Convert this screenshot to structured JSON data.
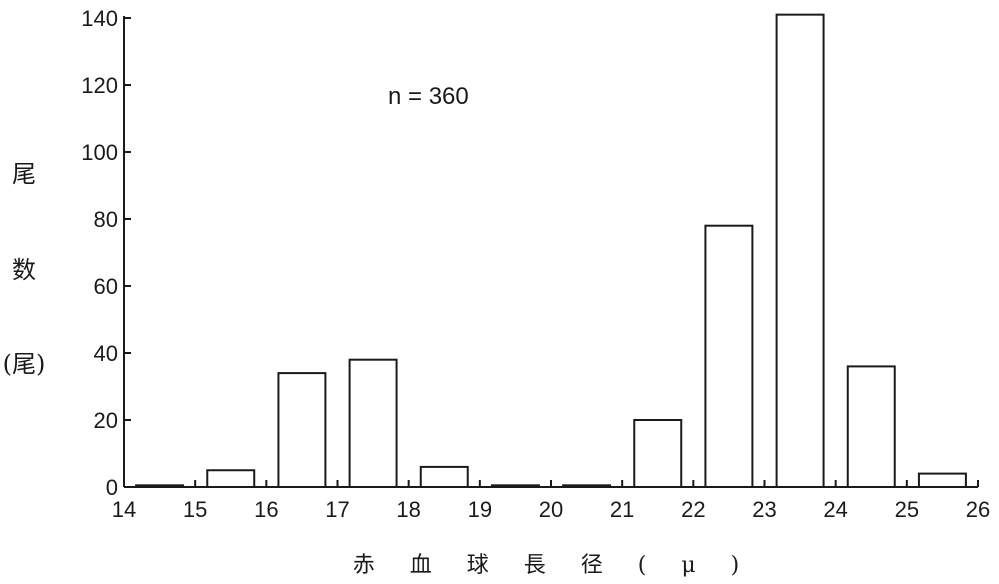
{
  "chart_data": {
    "type": "bar",
    "annotation": "n = 360",
    "ylabel_lines": [
      "尾",
      "数",
      "(尾)"
    ],
    "xlabel": "赤 血 球 長 径 ( μ )",
    "x_ticks": [
      "14",
      "15",
      "16",
      "17",
      "18",
      "19",
      "20",
      "21",
      "22",
      "23",
      "24",
      "25",
      "26"
    ],
    "y_ticks": [
      "0",
      "20",
      "40",
      "60",
      "80",
      "100",
      "120",
      "140"
    ],
    "ylim": [
      0,
      140
    ],
    "xlim": [
      14,
      26
    ],
    "grid": false,
    "bins": [
      {
        "from": 14,
        "to": 15,
        "value": 0.5
      },
      {
        "from": 15,
        "to": 16,
        "value": 5
      },
      {
        "from": 16,
        "to": 17,
        "value": 34
      },
      {
        "from": 17,
        "to": 18,
        "value": 38
      },
      {
        "from": 18,
        "to": 19,
        "value": 6
      },
      {
        "from": 19,
        "to": 20,
        "value": 0.5
      },
      {
        "from": 20,
        "to": 21,
        "value": 0.5
      },
      {
        "from": 21,
        "to": 22,
        "value": 20
      },
      {
        "from": 22,
        "to": 23,
        "value": 78
      },
      {
        "from": 23,
        "to": 24,
        "value": 141
      },
      {
        "from": 24,
        "to": 25,
        "value": 36
      },
      {
        "from": 25,
        "to": 26,
        "value": 4
      }
    ]
  }
}
